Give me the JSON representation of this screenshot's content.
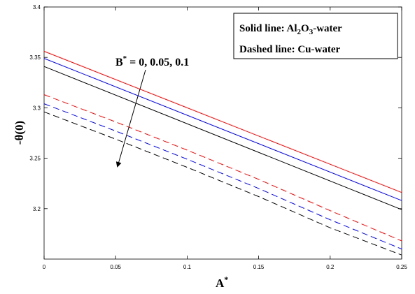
{
  "chart_data": {
    "type": "line",
    "xlabel": "A",
    "xlabel_sup": "*",
    "ylabel": "-θ(0)",
    "xlim": [
      0,
      0.25
    ],
    "ylim": [
      3.15,
      3.4
    ],
    "xticks": [
      0,
      0.05,
      0.1,
      0.15,
      0.2,
      0.25
    ],
    "xtick_labels": [
      "0",
      "0.05",
      "0.1",
      "0.15",
      "0.2",
      "0.25"
    ],
    "yticks": [
      3.2,
      3.25,
      3.3,
      3.35,
      3.4
    ],
    "ytick_labels": [
      "3.2",
      "3.25",
      "3.3",
      "3.35",
      "3.4"
    ],
    "grid": false,
    "legend": {
      "placement": "top-right",
      "line1_prefix": "Solid line: Al",
      "line1_sub1": "2",
      "line1_mid": "O",
      "line1_sub2": "3",
      "line1_suffix": "-water",
      "line2": "Dashed line: Cu-water"
    },
    "annotation": {
      "prefix": "B",
      "sup": "*",
      "suffix": " = 0, 0.05, 0.1"
    },
    "series": [
      {
        "style": "solid",
        "color": "#ff0000",
        "x": [
          0,
          0.25
        ],
        "y": [
          3.356,
          3.216
        ]
      },
      {
        "style": "solid",
        "color": "#0000ff",
        "x": [
          0,
          0.25
        ],
        "y": [
          3.349,
          3.208
        ]
      },
      {
        "style": "solid",
        "color": "#000000",
        "x": [
          0,
          0.25
        ],
        "y": [
          3.341,
          3.199
        ]
      },
      {
        "style": "dashed",
        "color": "#ff0000",
        "x": [
          0,
          0.05,
          0.1,
          0.15,
          0.2,
          0.25
        ],
        "y": [
          3.313,
          3.286,
          3.258,
          3.229,
          3.198,
          3.168
        ]
      },
      {
        "style": "dashed",
        "color": "#0000ff",
        "x": [
          0,
          0.05,
          0.1,
          0.15,
          0.2,
          0.25
        ],
        "y": [
          3.304,
          3.277,
          3.249,
          3.22,
          3.189,
          3.16
        ]
      },
      {
        "style": "dashed",
        "color": "#000000",
        "x": [
          0,
          0.05,
          0.1,
          0.15,
          0.2,
          0.25
        ],
        "y": [
          3.296,
          3.269,
          3.241,
          3.212,
          3.181,
          3.154
        ]
      }
    ]
  }
}
